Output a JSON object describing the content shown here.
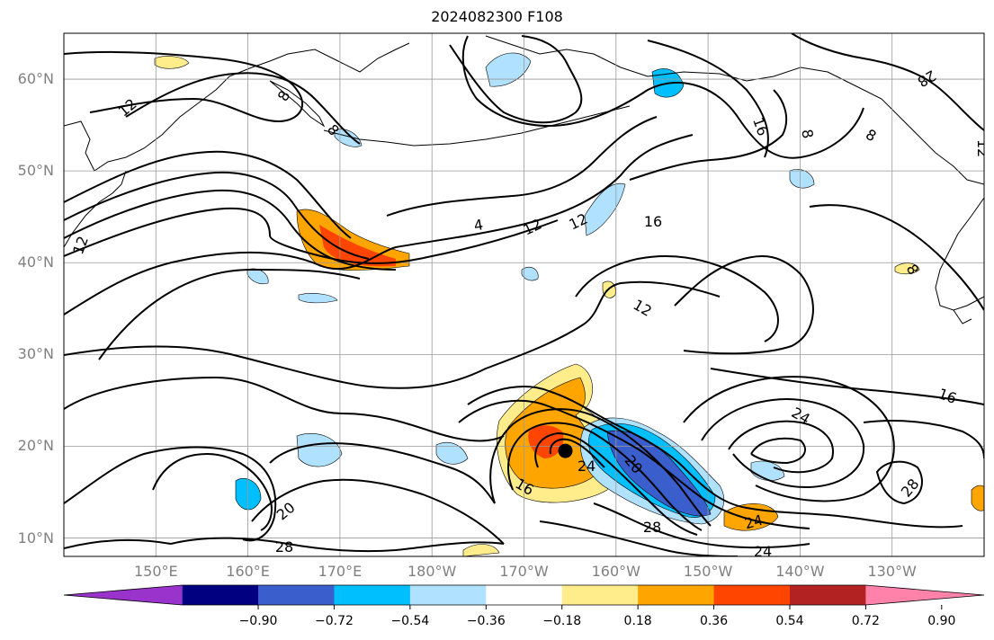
{
  "title": "2024082300 F108",
  "map": {
    "lat_axis": [
      {
        "label": "60°N",
        "lat": 60
      },
      {
        "label": "50°N",
        "lat": 50
      },
      {
        "label": "40°N",
        "lat": 40
      },
      {
        "label": "30°N",
        "lat": 30
      },
      {
        "label": "20°N",
        "lat": 20
      },
      {
        "label": "10°N",
        "lat": 10
      }
    ],
    "lon_axis": [
      {
        "label": "150°E",
        "lon": 150
      },
      {
        "label": "160°E",
        "lon": 160
      },
      {
        "label": "170°E",
        "lon": 170
      },
      {
        "label": "180°W",
        "lon": 180
      },
      {
        "label": "170°W",
        "lon": 190
      },
      {
        "label": "160°W",
        "lon": 200
      },
      {
        "label": "150°W",
        "lon": 210
      },
      {
        "label": "140°W",
        "lon": 220
      },
      {
        "label": "130°W",
        "lon": 230
      }
    ],
    "extent": {
      "lon_min": 140,
      "lon_max": 240,
      "lat_min": 8,
      "lat_max": 65
    },
    "contour_labels": [
      "12",
      "8",
      "8",
      "4",
      "12",
      "12",
      "16",
      "16",
      "8",
      "12",
      "28",
      "8",
      "12",
      "16",
      "24",
      "16",
      "20",
      "24",
      "20",
      "28",
      "24",
      "24",
      "28",
      "28",
      "12",
      "8"
    ],
    "storm_center": {
      "lat": 19.5,
      "lon": 194.5
    },
    "grid": true,
    "coastlines": true
  },
  "colorbar": {
    "ticks": [
      "−0.90",
      "−0.72",
      "−0.54",
      "−0.36",
      "−0.18",
      "0.18",
      "0.36",
      "0.54",
      "0.72",
      "0.90"
    ],
    "colors": [
      "#9933cc",
      "#000080",
      "#3a5fcd",
      "#00bfff",
      "#b0e2ff",
      "#ffffff",
      "#ffec8b",
      "#ffa500",
      "#ff4500",
      "#b22222",
      "#ff82ab"
    ],
    "extend": "both"
  }
}
